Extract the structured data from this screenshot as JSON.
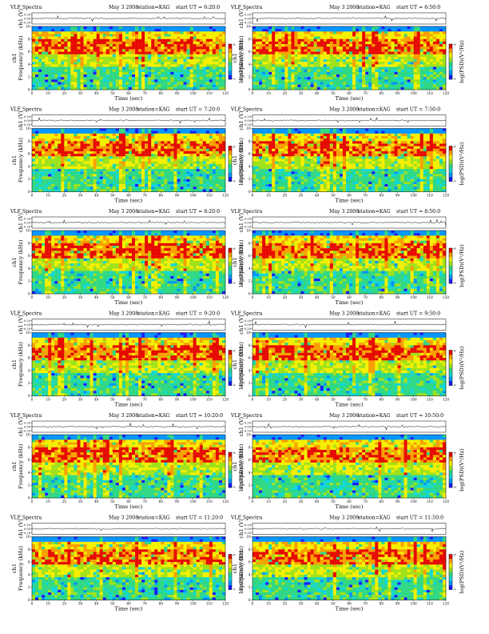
{
  "figure": {
    "title_prefix": "VLF Spectra",
    "date": "May 3 2008",
    "station": "station=KAG"
  },
  "colors": {
    "scale": [
      "#1a1aff",
      "#0095ff",
      "#12d7d7",
      "#2fd884",
      "#9fe21a",
      "#f5f000",
      "#f8a000",
      "#e60a00"
    ],
    "frame": "#000000",
    "background": "#ffffff"
  },
  "chart_data": {
    "type": "heatmap",
    "description_units": "spectrogram of VLF power spectral density",
    "xlabel": "Time (sec)",
    "ylabel": "Frequency (kHz)",
    "ylabel_prefix": "ch1",
    "wave_label": "ch1 (V)",
    "colorbar_label": "log(PSD)(V²/Hz)",
    "xlim": [
      0,
      120
    ],
    "ylim": [
      0,
      10
    ],
    "x_ticks": [
      0,
      10,
      20,
      30,
      40,
      50,
      60,
      70,
      80,
      90,
      100,
      110,
      120
    ],
    "y_ticks": [
      0,
      2,
      4,
      6,
      8,
      10
    ],
    "wave_ticks": [
      "0.20",
      "0.00",
      "-0.20"
    ],
    "colorbar_ticks": [
      "-8",
      "-9"
    ],
    "panels": [
      {
        "start_label": "start UT = 6:20:0"
      },
      {
        "start_label": "start UT = 6:50:0"
      },
      {
        "start_label": "start UT = 7:20:0"
      },
      {
        "start_label": "start UT = 7:50:0"
      },
      {
        "start_label": "start UT = 8:20:0"
      },
      {
        "start_label": "start UT = 8:50:0"
      },
      {
        "start_label": "start UT = 9:20:0"
      },
      {
        "start_label": "start UT = 9:50:0"
      },
      {
        "start_label": "start UT = 10:20:0"
      },
      {
        "start_label": "start UT = 10:50:0"
      },
      {
        "start_label": "start UT = 11:20:0"
      },
      {
        "start_label": "start UT = 11:50:0"
      }
    ]
  }
}
